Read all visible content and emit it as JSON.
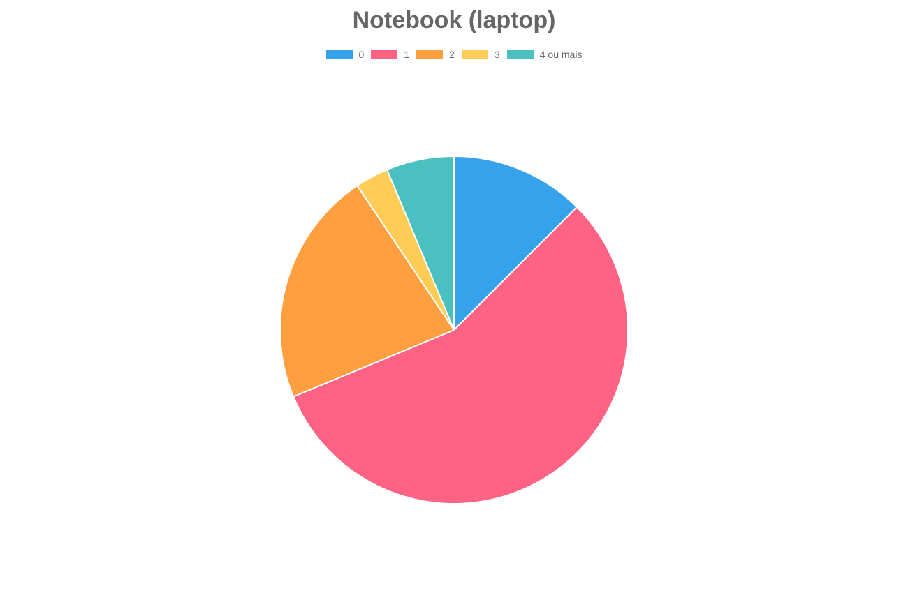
{
  "chart_data": {
    "type": "pie",
    "title": "Notebook (laptop)",
    "legend_position": "top",
    "categories": [
      "0",
      "1",
      "2",
      "3",
      "4 ou mais"
    ],
    "values": [
      12.5,
      56.3,
      21.9,
      3.1,
      6.3
    ],
    "colors": [
      "#36a2eb",
      "#ff6384",
      "#ff9f40",
      "#ffcd56",
      "#4bc0c0"
    ]
  }
}
